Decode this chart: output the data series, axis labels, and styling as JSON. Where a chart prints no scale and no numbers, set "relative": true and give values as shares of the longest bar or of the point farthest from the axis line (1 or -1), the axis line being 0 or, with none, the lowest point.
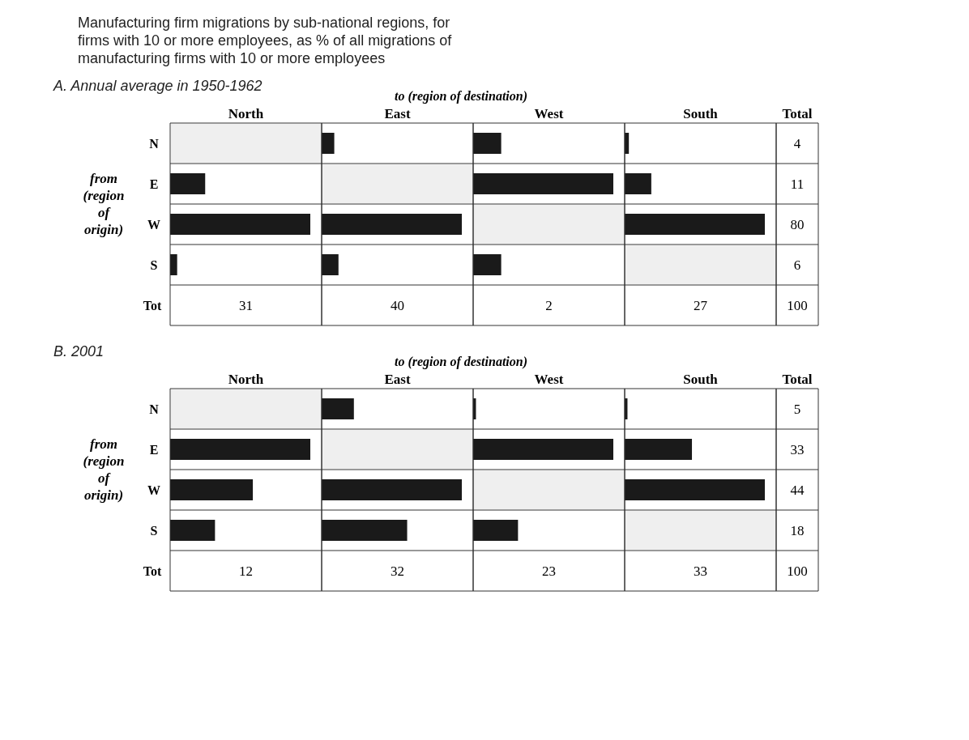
{
  "chart_data": [
    {
      "type": "other",
      "title": "Manufacturing firm migrations by sub-national regions, for firms with 10 or more employees, as % of all migrations of manufacturing firms with 10 or more employees",
      "subtitle": "A.  Annual average in 1950-1962",
      "annotations": [
        "to (region of destination)",
        "Tot"
      ]
    },
    {
      "type": "bar",
      "orientation": "horizontal",
      "relative": true,
      "title": "North",
      "ylabel": "from (region of origin)",
      "tick_labels": "y",
      "categories": [
        "N",
        "E",
        "W",
        "S"
      ],
      "values": [
        null,
        0.25,
        1,
        0.05
      ],
      "color": "#1a1a1a",
      "annotations": [
        "31"
      ],
      "bands": [
        {
          "axis": "y",
          "from": "N",
          "to": "N",
          "color": "#efefef"
        }
      ]
    },
    {
      "type": "bar",
      "orientation": "horizontal",
      "relative": true,
      "title": "East",
      "tick_labels": false,
      "categories": [
        "N",
        "E",
        "W",
        "S"
      ],
      "values": [
        0.09,
        null,
        1,
        0.12
      ],
      "color": "#1a1a1a",
      "annotations": [
        "40"
      ],
      "bands": [
        {
          "axis": "y",
          "from": "E",
          "to": "E",
          "color": "#efefef"
        }
      ]
    },
    {
      "type": "bar",
      "orientation": "horizontal",
      "relative": true,
      "title": "West",
      "tick_labels": false,
      "categories": [
        "N",
        "E",
        "W",
        "S"
      ],
      "values": [
        0.2,
        1,
        null,
        0.2
      ],
      "color": "#1a1a1a",
      "annotations": [
        "2"
      ],
      "bands": [
        {
          "axis": "y",
          "from": "W",
          "to": "W",
          "color": "#efefef"
        }
      ]
    },
    {
      "type": "bar",
      "orientation": "horizontal",
      "relative": true,
      "title": "South",
      "tick_labels": false,
      "categories": [
        "N",
        "E",
        "W",
        "S"
      ],
      "values": [
        0.03,
        0.19,
        1,
        null
      ],
      "color": "#1a1a1a",
      "annotations": [
        "27"
      ],
      "bands": [
        {
          "axis": "y",
          "from": "S",
          "to": "S",
          "color": "#efefef"
        }
      ]
    },
    {
      "type": "other",
      "title": "Total",
      "annotations": [
        "4",
        "11",
        "80",
        "6",
        "100"
      ]
    },
    {
      "type": "other",
      "subtitle": "B.  2001",
      "annotations": [
        "to (region of destination)",
        "Tot"
      ]
    },
    {
      "type": "bar",
      "orientation": "horizontal",
      "relative": true,
      "title": "North",
      "ylabel": "from (region of origin)",
      "tick_labels": "y",
      "categories": [
        "N",
        "E",
        "W",
        "S"
      ],
      "values": [
        null,
        1,
        0.59,
        0.32
      ],
      "color": "#1a1a1a",
      "annotations": [
        "12"
      ],
      "bands": [
        {
          "axis": "y",
          "from": "N",
          "to": "N",
          "color": "#efefef"
        }
      ]
    },
    {
      "type": "bar",
      "orientation": "horizontal",
      "relative": true,
      "title": "East",
      "tick_labels": false,
      "categories": [
        "N",
        "E",
        "W",
        "S"
      ],
      "values": [
        0.23,
        null,
        1,
        0.61
      ],
      "color": "#1a1a1a",
      "annotations": [
        "32"
      ],
      "bands": [
        {
          "axis": "y",
          "from": "E",
          "to": "E",
          "color": "#efefef"
        }
      ]
    },
    {
      "type": "bar",
      "orientation": "horizontal",
      "relative": true,
      "title": "West",
      "tick_labels": false,
      "categories": [
        "N",
        "E",
        "W",
        "S"
      ],
      "values": [
        0.02,
        1,
        null,
        0.32
      ],
      "color": "#1a1a1a",
      "annotations": [
        "23"
      ],
      "bands": [
        {
          "axis": "y",
          "from": "W",
          "to": "W",
          "color": "#efefef"
        }
      ]
    },
    {
      "type": "bar",
      "orientation": "horizontal",
      "relative": true,
      "title": "South",
      "tick_labels": false,
      "categories": [
        "N",
        "E",
        "W",
        "S"
      ],
      "values": [
        0.02,
        0.48,
        1,
        null
      ],
      "color": "#1a1a1a",
      "annotations": [
        "33"
      ],
      "bands": [
        {
          "axis": "y",
          "from": "S",
          "to": "S",
          "color": "#efefef"
        }
      ]
    },
    {
      "type": "other",
      "title": "Total",
      "annotations": [
        "5",
        "33",
        "44",
        "18",
        "100"
      ]
    }
  ]
}
